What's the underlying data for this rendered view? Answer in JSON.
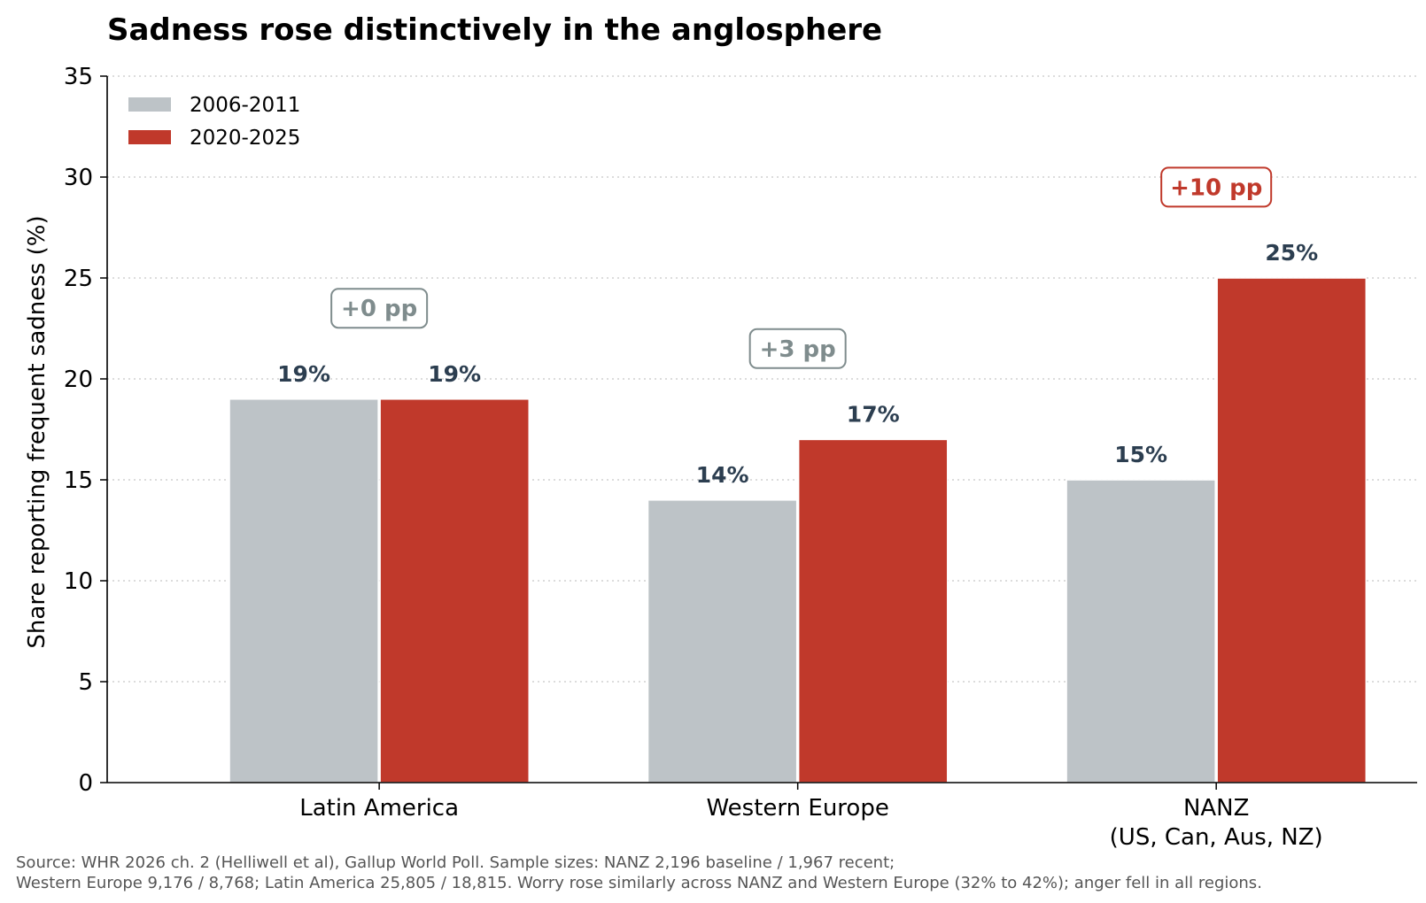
{
  "chart_data": {
    "type": "bar",
    "title": "Sadness rose distinctively in the anglosphere",
    "ylabel": "Share reporting frequent sadness (%)",
    "xlabel": "",
    "ylim": [
      0,
      35
    ],
    "yticks": [
      0,
      5,
      10,
      15,
      20,
      25,
      30,
      35
    ],
    "grid": "horizontal-dotted",
    "legend_position": "top-left",
    "categories": [
      [
        "Latin America"
      ],
      [
        "Western Europe"
      ],
      [
        "NANZ",
        "(US, Can, Aus, NZ)"
      ]
    ],
    "series": [
      {
        "name": "2006-2011",
        "color": "#bdc3c7",
        "values": [
          19,
          14,
          15
        ],
        "labels": [
          "19%",
          "14%",
          "15%"
        ]
      },
      {
        "name": "2020-2025",
        "color": "#c0392b",
        "values": [
          19,
          17,
          25
        ],
        "labels": [
          "19%",
          "17%",
          "25%"
        ]
      }
    ],
    "annotations": [
      {
        "category_index": 0,
        "text": "+0 pp",
        "y": 23.5,
        "color": "#7f8c8d"
      },
      {
        "category_index": 1,
        "text": "+3 pp",
        "y": 21.5,
        "color": "#7f8c8d"
      },
      {
        "category_index": 2,
        "text": "+10 pp",
        "y": 29.5,
        "color": "#c0392b"
      }
    ],
    "label_color": "#2c3e50"
  },
  "source_note": [
    "Source: WHR 2026 ch. 2 (Helliwell et al), Gallup World Poll. Sample sizes: NANZ 2,196 baseline / 1,967 recent;",
    "Western Europe 9,176 / 8,768; Latin America 25,805 / 18,815. Worry rose similarly across NANZ and Western Europe (32% to 42%); anger fell in all regions."
  ]
}
